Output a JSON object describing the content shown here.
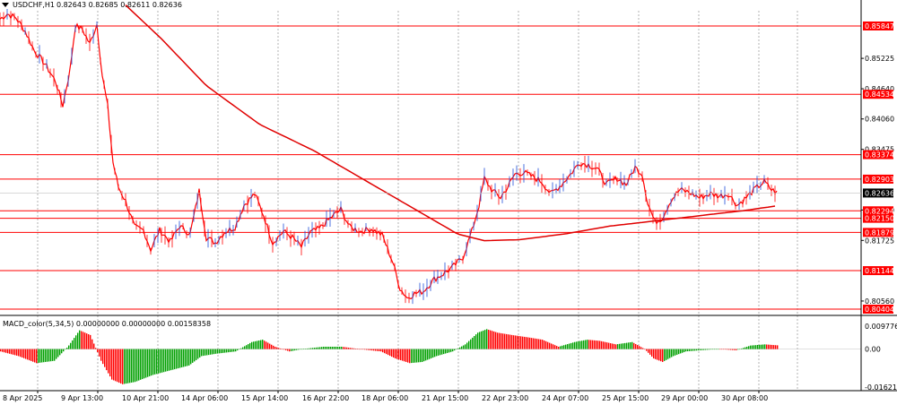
{
  "header": {
    "symbol": "USDCHF,H1",
    "ohlc": "0.82643 0.82685 0.82611 0.82636"
  },
  "macd": {
    "label": "MACD_color(5,34,5) 0.00000000 0.00000000 0.00158358",
    "scale_labels": [
      "0.0097764",
      "0.00",
      "-0.0162133"
    ],
    "scale_values": [
      0.0097764,
      0.0,
      -0.0162133
    ]
  },
  "price_axis": {
    "ticks": [
      "0.85225",
      "0.84640",
      "0.84060",
      "0.83475",
      "0.82310",
      "0.81725",
      "0.80560"
    ],
    "tick_values": [
      0.85225,
      0.8464,
      0.8406,
      0.83475,
      0.8231,
      0.81725,
      0.8056
    ],
    "current": "0.82636",
    "current_value": 0.82636
  },
  "levels": [
    {
      "label": "0.85847",
      "value": 0.85847
    },
    {
      "label": "0.84534",
      "value": 0.84534
    },
    {
      "label": "0.83374",
      "value": 0.83374
    },
    {
      "label": "0.82903",
      "value": 0.82903
    },
    {
      "label": "0.82294",
      "value": 0.82294
    },
    {
      "label": "0.82150",
      "value": 0.8215
    },
    {
      "label": "0.81879",
      "value": 0.81879
    },
    {
      "label": "0.81144",
      "value": 0.81144
    },
    {
      "label": "0.80404",
      "value": 0.80404
    }
  ],
  "time_axis": [
    "8 Apr 2025",
    "9 Apr 13:00",
    "10 Apr 21:00",
    "14 Apr 06:00",
    "15 Apr 14:00",
    "16 Apr 22:00",
    "18 Apr 06:00",
    "21 Apr 15:00",
    "22 Apr 23:00",
    "24 Apr 07:00",
    "25 Apr 15:00",
    "29 Apr 00:00",
    "30 Apr 08:00"
  ],
  "colors": {
    "level_line": "#ff0000",
    "level_label_bg": "#ff0000",
    "price_line": "#ff0000",
    "ma_line": "#e00000",
    "current_bg": "#000000",
    "macd_up": "#00a000",
    "macd_down": "#ff0000",
    "grid": "#808080"
  },
  "chart_data": {
    "type": "line",
    "title": "",
    "xlabel": "",
    "ylabel": "",
    "ylim": [
      0.80404,
      0.8625
    ],
    "x": [
      "8 Apr 2025",
      "9 Apr 13:00",
      "10 Apr 21:00",
      "14 Apr 06:00",
      "15 Apr 14:00",
      "16 Apr 22:00",
      "18 Apr 06:00",
      "21 Apr 15:00",
      "22 Apr 23:00",
      "24 Apr 07:00",
      "25 Apr 15:00",
      "29 Apr 00:00",
      "30 Apr 08:00"
    ],
    "price": [
      0.8598,
      0.8545,
      0.8358,
      0.8198,
      0.8192,
      0.8173,
      0.8185,
      0.8078,
      0.824,
      0.8303,
      0.831,
      0.8225,
      0.8265
    ],
    "ma": [
      0.8655,
      0.856,
      0.8455,
      0.8355,
      0.8288,
      0.8232,
      0.819,
      0.8152,
      0.817,
      0.8183,
      0.8203,
      0.8216,
      0.8232
    ],
    "macd": [
      -0.003,
      0.008,
      -0.015,
      -0.005,
      0.002,
      0.0,
      0.0,
      -0.006,
      0.007,
      0.004,
      0.003,
      -0.005,
      0.001
    ]
  }
}
